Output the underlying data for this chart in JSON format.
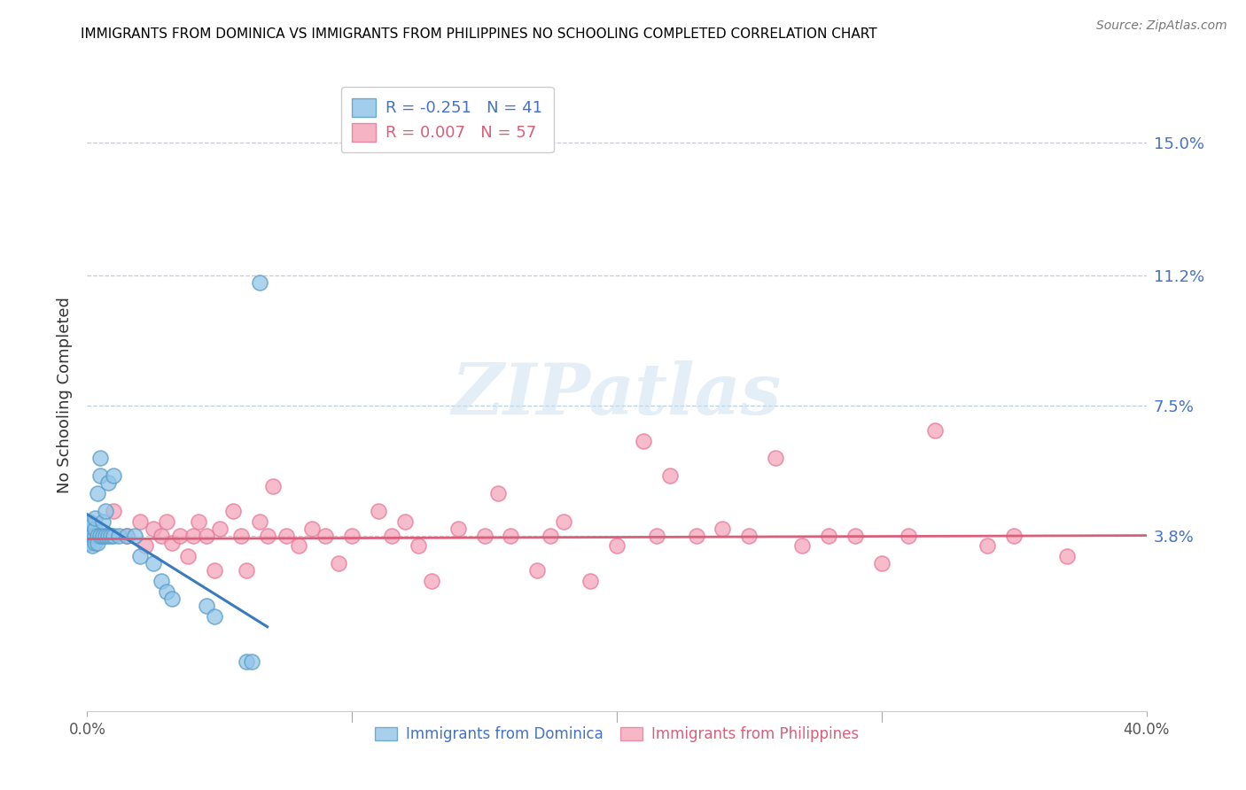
{
  "title": "IMMIGRANTS FROM DOMINICA VS IMMIGRANTS FROM PHILIPPINES NO SCHOOLING COMPLETED CORRELATION CHART",
  "source": "Source: ZipAtlas.com",
  "ylabel": "No Schooling Completed",
  "ytick_labels": [
    "3.8%",
    "7.5%",
    "11.2%",
    "15.0%"
  ],
  "ytick_values": [
    0.038,
    0.075,
    0.112,
    0.15
  ],
  "xmin": 0.0,
  "xmax": 0.4,
  "ymin": -0.012,
  "ymax": 0.168,
  "legend_blue_r": "R = -0.251",
  "legend_blue_n": "N = 41",
  "legend_pink_r": "R = 0.007",
  "legend_pink_n": "N = 57",
  "blue_color": "#92c5e8",
  "pink_color": "#f4a6ba",
  "blue_edge_color": "#5a9ec8",
  "pink_edge_color": "#e87a9a",
  "blue_line_color": "#3a7bbf",
  "pink_line_color": "#d9607a",
  "watermark_color": "#cce0f0",
  "blue_scatter_x": [
    0.001,
    0.001,
    0.001,
    0.001,
    0.002,
    0.002,
    0.002,
    0.002,
    0.002,
    0.003,
    0.003,
    0.003,
    0.003,
    0.004,
    0.004,
    0.004,
    0.005,
    0.005,
    0.005,
    0.006,
    0.006,
    0.007,
    0.007,
    0.008,
    0.008,
    0.009,
    0.01,
    0.01,
    0.012,
    0.015,
    0.018,
    0.02,
    0.025,
    0.028,
    0.03,
    0.032,
    0.045,
    0.048,
    0.06,
    0.062,
    0.065
  ],
  "blue_scatter_y": [
    0.038,
    0.04,
    0.036,
    0.042,
    0.037,
    0.039,
    0.035,
    0.041,
    0.038,
    0.038,
    0.04,
    0.036,
    0.043,
    0.038,
    0.036,
    0.05,
    0.038,
    0.055,
    0.06,
    0.038,
    0.042,
    0.038,
    0.045,
    0.038,
    0.053,
    0.038,
    0.038,
    0.055,
    0.038,
    0.038,
    0.038,
    0.032,
    0.03,
    0.025,
    0.022,
    0.02,
    0.018,
    0.015,
    0.002,
    0.002,
    0.11
  ],
  "pink_scatter_x": [
    0.01,
    0.015,
    0.02,
    0.022,
    0.025,
    0.028,
    0.03,
    0.032,
    0.035,
    0.038,
    0.04,
    0.042,
    0.045,
    0.048,
    0.05,
    0.055,
    0.058,
    0.06,
    0.065,
    0.068,
    0.07,
    0.075,
    0.08,
    0.085,
    0.09,
    0.095,
    0.1,
    0.11,
    0.115,
    0.12,
    0.125,
    0.13,
    0.14,
    0.15,
    0.155,
    0.16,
    0.17,
    0.175,
    0.18,
    0.19,
    0.2,
    0.21,
    0.215,
    0.22,
    0.23,
    0.24,
    0.25,
    0.26,
    0.27,
    0.28,
    0.29,
    0.3,
    0.31,
    0.32,
    0.34,
    0.35,
    0.37
  ],
  "pink_scatter_y": [
    0.045,
    0.038,
    0.042,
    0.035,
    0.04,
    0.038,
    0.042,
    0.036,
    0.038,
    0.032,
    0.038,
    0.042,
    0.038,
    0.028,
    0.04,
    0.045,
    0.038,
    0.028,
    0.042,
    0.038,
    0.052,
    0.038,
    0.035,
    0.04,
    0.038,
    0.03,
    0.038,
    0.045,
    0.038,
    0.042,
    0.035,
    0.025,
    0.04,
    0.038,
    0.05,
    0.038,
    0.028,
    0.038,
    0.042,
    0.025,
    0.035,
    0.065,
    0.038,
    0.055,
    0.038,
    0.04,
    0.038,
    0.06,
    0.035,
    0.038,
    0.038,
    0.03,
    0.038,
    0.068,
    0.035,
    0.038,
    0.032
  ],
  "blue_trendline_x": [
    0.0,
    0.068
  ],
  "blue_trendline_y": [
    0.044,
    0.012
  ],
  "pink_trendline_x": [
    0.0,
    0.4
  ],
  "pink_trendline_y": [
    0.037,
    0.038
  ]
}
